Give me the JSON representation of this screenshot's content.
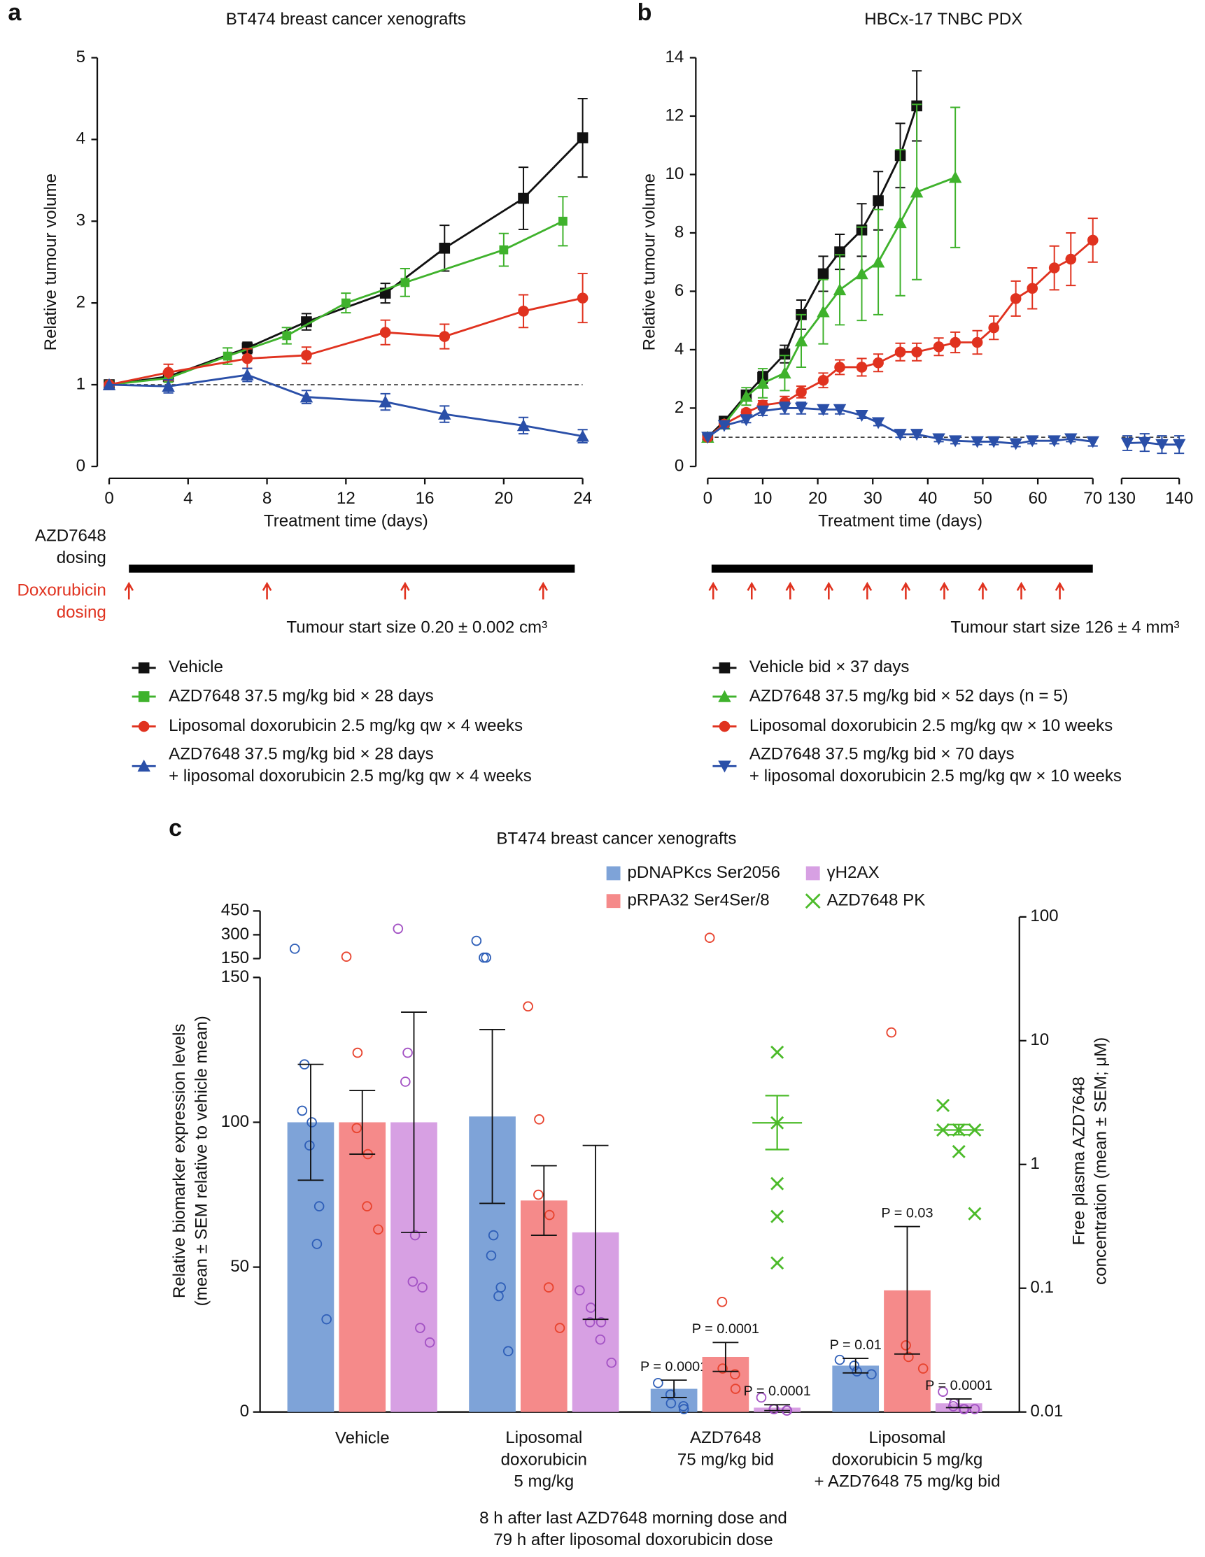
{
  "chart_data": [
    {
      "panel": "a",
      "type": "line",
      "title": "BT474 breast cancer xenografts",
      "xlabel": "Treatment time (days)",
      "ylabel": "Relative tumour volume",
      "xlim": [
        0,
        24
      ],
      "xticks": [
        0,
        4,
        8,
        12,
        16,
        20,
        24
      ],
      "ylim": [
        0,
        5
      ],
      "yticks": [
        0,
        1,
        2,
        3,
        4,
        5
      ],
      "reference_line": 1,
      "series": [
        {
          "name": "Vehicle",
          "color": "#111111",
          "marker": "square",
          "x": [
            0,
            3,
            7,
            10,
            14,
            17,
            21,
            24
          ],
          "values": [
            1,
            1.1,
            1.45,
            1.77,
            2.12,
            2.67,
            3.28,
            4.02
          ],
          "errors": [
            0,
            0.05,
            0.07,
            0.1,
            0.12,
            0.28,
            0.38,
            0.48
          ]
        },
        {
          "name": "AZD7648 37.5 mg/kg bid × 28 days",
          "color": "#3fb22c",
          "marker": "square",
          "x": [
            0,
            3,
            6,
            9,
            12,
            15,
            20,
            23
          ],
          "values": [
            1,
            1.08,
            1.35,
            1.6,
            2.0,
            2.25,
            2.65,
            3.0
          ],
          "errors": [
            0,
            0.05,
            0.1,
            0.1,
            0.12,
            0.17,
            0.2,
            0.3
          ]
        },
        {
          "name": "Liposomal doxorubicin 2.5 mg/kg qw × 4 weeks",
          "color": "#e0321f",
          "marker": "circle",
          "x": [
            0,
            3,
            7,
            10,
            14,
            17,
            21,
            24
          ],
          "values": [
            1,
            1.15,
            1.32,
            1.36,
            1.64,
            1.59,
            1.9,
            2.06
          ],
          "errors": [
            0,
            0.1,
            0.12,
            0.1,
            0.15,
            0.15,
            0.2,
            0.3
          ]
        },
        {
          "name": "AZD7648 37.5 mg/kg bid × 28 days\n+ liposomal doxorubicin 2.5 mg/kg qw × 4 weeks",
          "color": "#2a4fa8",
          "marker": "triangle-up",
          "x": [
            0,
            3,
            7,
            10,
            14,
            17,
            21,
            24
          ],
          "values": [
            1,
            0.98,
            1.12,
            0.85,
            0.79,
            0.64,
            0.5,
            0.37
          ],
          "errors": [
            0,
            0.08,
            0.08,
            0.08,
            0.1,
            0.1,
            0.1,
            0.08
          ]
        }
      ],
      "dosing_labels": [
        "AZD7648\ndosing",
        "Doxorubicin\ndosing"
      ],
      "dosing_period": [
        1,
        23.6
      ],
      "dose_days": [
        1,
        8,
        15,
        22
      ],
      "annotation": "Tumour start size 0.20 ± 0.002 cm³"
    },
    {
      "panel": "b",
      "type": "line",
      "title": "HBCx-17 TNBC PDX",
      "xlabel": "Treatment time (days)",
      "ylabel": "Relative tumour volume",
      "xlim": [
        0,
        70
      ],
      "xticks": [
        0,
        10,
        20,
        30,
        40,
        50,
        60,
        70
      ],
      "x2lim": [
        130,
        140
      ],
      "x2ticks": [
        130,
        140
      ],
      "ylim": [
        0,
        14
      ],
      "yticks": [
        0,
        2,
        4,
        6,
        8,
        10,
        12,
        14
      ],
      "reference_line": 1,
      "series": [
        {
          "name": "Vehicle bid × 37 days",
          "color": "#111111",
          "marker": "square",
          "x": [
            0,
            3,
            7,
            10,
            14,
            17,
            21,
            24,
            28,
            31,
            35,
            38
          ],
          "values": [
            1,
            1.55,
            2.45,
            3.05,
            3.85,
            5.2,
            6.6,
            7.35,
            8.1,
            9.1,
            10.65,
            12.35
          ],
          "errors": [
            0,
            0.1,
            0.15,
            0.2,
            0.3,
            0.5,
            0.6,
            0.6,
            0.9,
            1.0,
            1.1,
            1.2
          ]
        },
        {
          "name": "AZD7648 37.5 mg/kg bid × 52 days (n = 5)",
          "color": "#3fb22c",
          "marker": "triangle-up",
          "x": [
            0,
            3,
            7,
            10,
            14,
            17,
            21,
            24,
            28,
            31,
            35,
            38,
            45
          ],
          "values": [
            1,
            1.45,
            2.4,
            2.85,
            3.2,
            4.3,
            5.3,
            6.05,
            6.6,
            7.0,
            8.35,
            9.4,
            9.9
          ],
          "errors": [
            0,
            0.1,
            0.3,
            0.5,
            0.6,
            0.9,
            1.1,
            1.2,
            1.6,
            1.8,
            2.5,
            3.0,
            2.4
          ]
        },
        {
          "name": "Liposomal doxorubicin 2.5 mg/kg qw × 10 weeks",
          "color": "#e0321f",
          "marker": "circle",
          "x": [
            0,
            3,
            7,
            10,
            14,
            17,
            21,
            24,
            28,
            31,
            35,
            38,
            42,
            45,
            49,
            52,
            56,
            59,
            63,
            66,
            70
          ],
          "values": [
            1,
            1.45,
            1.85,
            2.1,
            2.2,
            2.55,
            2.95,
            3.4,
            3.4,
            3.55,
            3.92,
            3.92,
            4.1,
            4.25,
            4.25,
            4.75,
            5.75,
            6.1,
            6.8,
            7.1,
            7.75
          ],
          "errors": [
            0,
            0.1,
            0.1,
            0.15,
            0.2,
            0.2,
            0.25,
            0.25,
            0.3,
            0.3,
            0.3,
            0.3,
            0.3,
            0.35,
            0.4,
            0.4,
            0.6,
            0.7,
            0.75,
            0.9,
            0.75
          ]
        },
        {
          "name": "AZD7648 37.5 mg/kg bid × 70 days\n+ liposomal doxorubicin 2.5 mg/kg qw × 10 weeks",
          "color": "#2a4fa8",
          "marker": "triangle-down",
          "x": [
            0,
            3,
            7,
            10,
            14,
            17,
            21,
            24,
            28,
            31,
            35,
            38,
            42,
            45,
            49,
            52,
            56,
            59,
            63,
            66,
            70,
            131,
            134,
            137,
            140
          ],
          "values": [
            1,
            1.4,
            1.6,
            1.9,
            2.0,
            2.0,
            1.95,
            1.95,
            1.75,
            1.5,
            1.1,
            1.1,
            0.95,
            0.88,
            0.85,
            0.85,
            0.78,
            0.88,
            0.88,
            0.95,
            0.85,
            0.8,
            0.82,
            0.75,
            0.75
          ],
          "errors": [
            0,
            0.1,
            0.1,
            0.15,
            0.2,
            0.2,
            0.15,
            0.15,
            0.1,
            0.1,
            0.1,
            0.1,
            0.1,
            0.1,
            0.1,
            0.1,
            0.1,
            0.1,
            0.1,
            0.1,
            0.15,
            0.25,
            0.3,
            0.3,
            0.3
          ]
        }
      ],
      "dosing_period": [
        0.7,
        70
      ],
      "dose_days": [
        1,
        8,
        15,
        22,
        29,
        36,
        43,
        50,
        57,
        64
      ],
      "annotation": "Tumour start size 126 ± 4 mm³"
    },
    {
      "panel": "c",
      "type": "bar",
      "title": "BT474 breast cancer xenografts",
      "categories": [
        "Vehicle",
        "Liposomal\ndoxorubicin\n5 mg/kg",
        "AZD7648\n75 mg/kg bid",
        "Liposomal\ndoxorubicin 5 mg/kg\n+ AZD7648 75 mg/kg bid"
      ],
      "xlabel": "8 h after last AZD7648 morning dose and\n79 h after liposomal doxorubicin dose",
      "ylabel": "Relative biomarker expression levels\n(mean ± SEM relative to vehicle mean)",
      "y2label": "Free plasma AZD7648\nconcentration (mean ± SEM; μM)",
      "ylim": [
        0,
        150
      ],
      "yticks": [
        0,
        50,
        100,
        150
      ],
      "ylim_upper": [
        150,
        450
      ],
      "yticks_upper": [
        150,
        300,
        450
      ],
      "y2lim": [
        0.01,
        100
      ],
      "y2ticks": [
        0.01,
        0.1,
        1,
        10,
        100
      ],
      "y2log": true,
      "series": [
        {
          "name": "pDNAPKcs Ser2056",
          "color": "#7ea3d8",
          "point_color": "#2f5fb8",
          "values": [
            100,
            102,
            8,
            16
          ],
          "errors": [
            20,
            30,
            3,
            2.5
          ],
          "points": [
            [
              212,
              120,
              104,
              100,
              92,
              71,
              58,
              32
            ],
            [
              262,
              156,
              156,
              61,
              54,
              43,
              40,
              21
            ],
            [
              10,
              6,
              3,
              2,
              1
            ],
            [
              18,
              16,
              14,
              13
            ]
          ],
          "p_labels": [
            null,
            null,
            "P = 0.0001",
            "P = 0.01"
          ]
        },
        {
          "name": "pRPA32 Ser4Ser/8",
          "color": "#f58a8a",
          "point_color": "#e8432e",
          "values": [
            100,
            73,
            19,
            42
          ],
          "errors": [
            11,
            12,
            5,
            22
          ],
          "points": [
            [
              162,
              124,
              98,
              89,
              71,
              63
            ],
            [
              140,
              101,
              75,
              68,
              43,
              29
            ],
            [
              281,
              38,
              15,
              13,
              8
            ],
            [
              131,
              23,
              19,
              15
            ]
          ],
          "p_labels": [
            null,
            null,
            "P = 0.0001",
            "P = 0.03"
          ]
        },
        {
          "name": "γH2AX",
          "color": "#d7a0e3",
          "point_color": "#a352c4",
          "values": [
            100,
            62,
            1.5,
            3
          ],
          "errors": [
            38,
            30,
            1,
            1.5
          ],
          "points": [
            [
              338,
              124,
              114,
              61,
              45,
              43,
              29,
              24
            ],
            [
              42,
              36,
              31,
              31,
              25,
              17
            ],
            [
              5,
              1,
              1,
              0.5,
              0.5
            ],
            [
              7,
              3,
              2,
              1,
              1,
              1
            ]
          ],
          "p_labels": [
            null,
            null,
            "P = 0.0001",
            "P = 0.0001"
          ]
        }
      ],
      "pk": {
        "name": "AZD7648 PK",
        "color": "#4cbb2a",
        "axis": "y2",
        "values": [
          null,
          null,
          2.17,
          1.9
        ],
        "lower": [
          null,
          null,
          1.32,
          1.74
        ],
        "upper": [
          null,
          null,
          3.6,
          2.1
        ],
        "points": [
          null,
          null,
          [
            8.06,
            2.17,
            0.7,
            0.38,
            0.16
          ],
          [
            3.0,
            1.9,
            1.9,
            1.9,
            1.27,
            0.4
          ]
        ]
      }
    }
  ]
}
